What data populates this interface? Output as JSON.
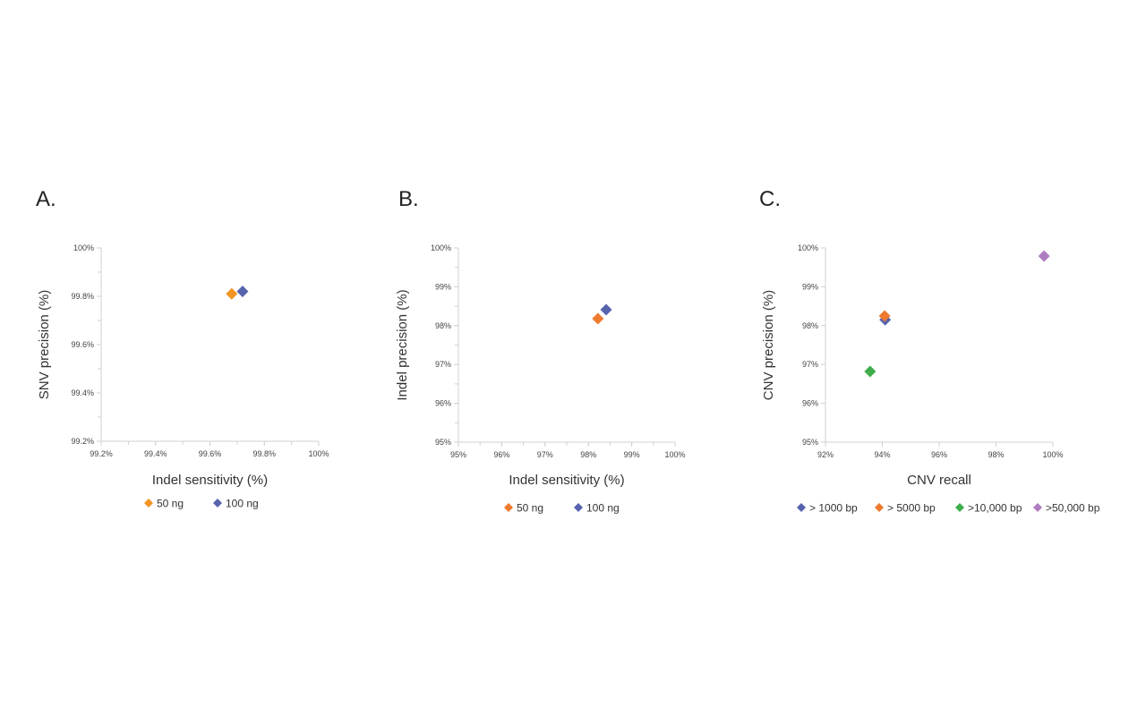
{
  "chart_data": [
    {
      "type": "scatter",
      "panel_label": "A.",
      "xlabel": "Indel sensitivity (%)",
      "ylabel": "SNV precision (%)",
      "xlim": [
        99.2,
        100
      ],
      "ylim": [
        99.2,
        100
      ],
      "x_ticks": [
        "99.2%",
        "99.4%",
        "99.6%",
        "99.8%",
        "100%"
      ],
      "y_ticks": [
        "99.2%",
        "99.4%",
        "99.6%",
        "99.8%",
        "100%"
      ],
      "minor_step": 0.1,
      "grid": false,
      "legend_placement": "bottom",
      "series": [
        {
          "name": "50 ng",
          "color": "#f39422",
          "x": [
            99.68
          ],
          "y": [
            99.81
          ]
        },
        {
          "name": "100 ng",
          "color": "#5763ad",
          "x": [
            99.72
          ],
          "y": [
            99.82
          ]
        }
      ]
    },
    {
      "type": "scatter",
      "panel_label": "B.",
      "xlabel": "Indel sensitivity (%)",
      "ylabel": "Indel precision (%)",
      "xlim": [
        95,
        100
      ],
      "ylim": [
        95,
        100
      ],
      "x_ticks": [
        "95%",
        "96%",
        "97%",
        "98%",
        "99%",
        "100%"
      ],
      "y_ticks": [
        "95%",
        "96%",
        "97%",
        "98%",
        "99%",
        "100%"
      ],
      "minor_step": 0.5,
      "grid": false,
      "legend_placement": "bottom",
      "series": [
        {
          "name": "50 ng",
          "color": "#ee7a2e",
          "x": [
            98.22
          ],
          "y": [
            98.18
          ]
        },
        {
          "name": "100 ng",
          "color": "#5763ad",
          "x": [
            98.41
          ],
          "y": [
            98.41
          ]
        }
      ]
    },
    {
      "type": "scatter",
      "panel_label": "C.",
      "xlabel": "CNV recall",
      "ylabel": "CNV precision (%)",
      "xlim": [
        92,
        100
      ],
      "ylim": [
        95,
        100
      ],
      "x_ticks": [
        "92%",
        "94%",
        "96%",
        "98%",
        "100%"
      ],
      "y_ticks": [
        "95%",
        "96%",
        "97%",
        "98%",
        "99%",
        "100%"
      ],
      "grid": false,
      "legend_placement": "bottom",
      "series": [
        {
          "name": "> 1000 bp",
          "color": "#5763ad",
          "x": [
            94.1
          ],
          "y": [
            98.15
          ]
        },
        {
          "name": "> 5000 bp",
          "color": "#ee7a2e",
          "x": [
            94.08
          ],
          "y": [
            98.25
          ]
        },
        {
          "name": ">10,000 bp",
          "color": "#3fae4a",
          "x": [
            93.57
          ],
          "y": [
            96.82
          ]
        },
        {
          "name": ">50,000 bp",
          "color": "#b07cc0",
          "x": [
            99.69
          ],
          "y": [
            99.79
          ]
        }
      ]
    }
  ]
}
